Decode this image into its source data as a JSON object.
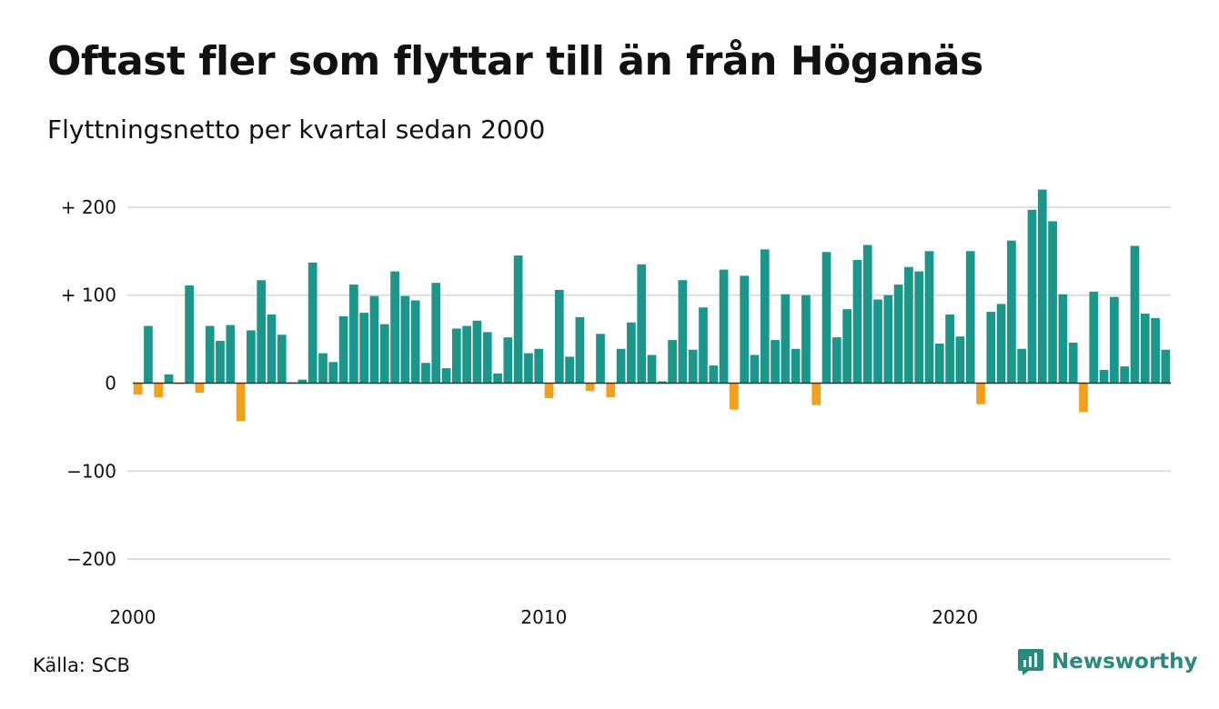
{
  "title": "Oftast fler som flyttar till än från Höganäs",
  "subtitle": "Flyttningsnetto per kvartal sedan 2000",
  "source": "Källa: SCB",
  "brand": "Newsworthy",
  "brand_icon": "newsworthy-logo-icon",
  "colors": {
    "positive": "#1b968a",
    "negative": "#f5a01d",
    "grid": "#dddddd",
    "zero": "#333333"
  },
  "chart_data": {
    "type": "bar",
    "xlabel": "",
    "ylabel": "",
    "ylim": [
      -220,
      220
    ],
    "grid": true,
    "y_ticks": [
      200,
      100,
      0,
      -100,
      -200
    ],
    "y_tick_labels": [
      "+ 200",
      "+ 100",
      "0",
      "−100",
      "−200"
    ],
    "x_tick_labels": [
      "2000",
      "2010",
      "2020"
    ],
    "x_tick_index": [
      0,
      40,
      80
    ],
    "values": [
      -13,
      65,
      -16,
      10,
      -1,
      111,
      -11,
      65,
      48,
      66,
      -43,
      60,
      117,
      78,
      55,
      1,
      4,
      137,
      34,
      24,
      76,
      112,
      80,
      99,
      67,
      127,
      99,
      94,
      23,
      114,
      17,
      62,
      65,
      71,
      58,
      11,
      52,
      145,
      34,
      39,
      -17,
      106,
      30,
      75,
      -9,
      56,
      -16,
      39,
      69,
      135,
      32,
      2,
      49,
      117,
      38,
      86,
      20,
      129,
      -30,
      122,
      32,
      152,
      49,
      101,
      39,
      100,
      -25,
      149,
      52,
      84,
      140,
      157,
      95,
      100,
      112,
      132,
      127,
      150,
      45,
      78,
      53,
      150,
      -24,
      81,
      90,
      162,
      39,
      197,
      220,
      184,
      101,
      46,
      -33,
      104,
      15,
      98,
      19,
      156,
      79,
      74,
      38
    ]
  }
}
